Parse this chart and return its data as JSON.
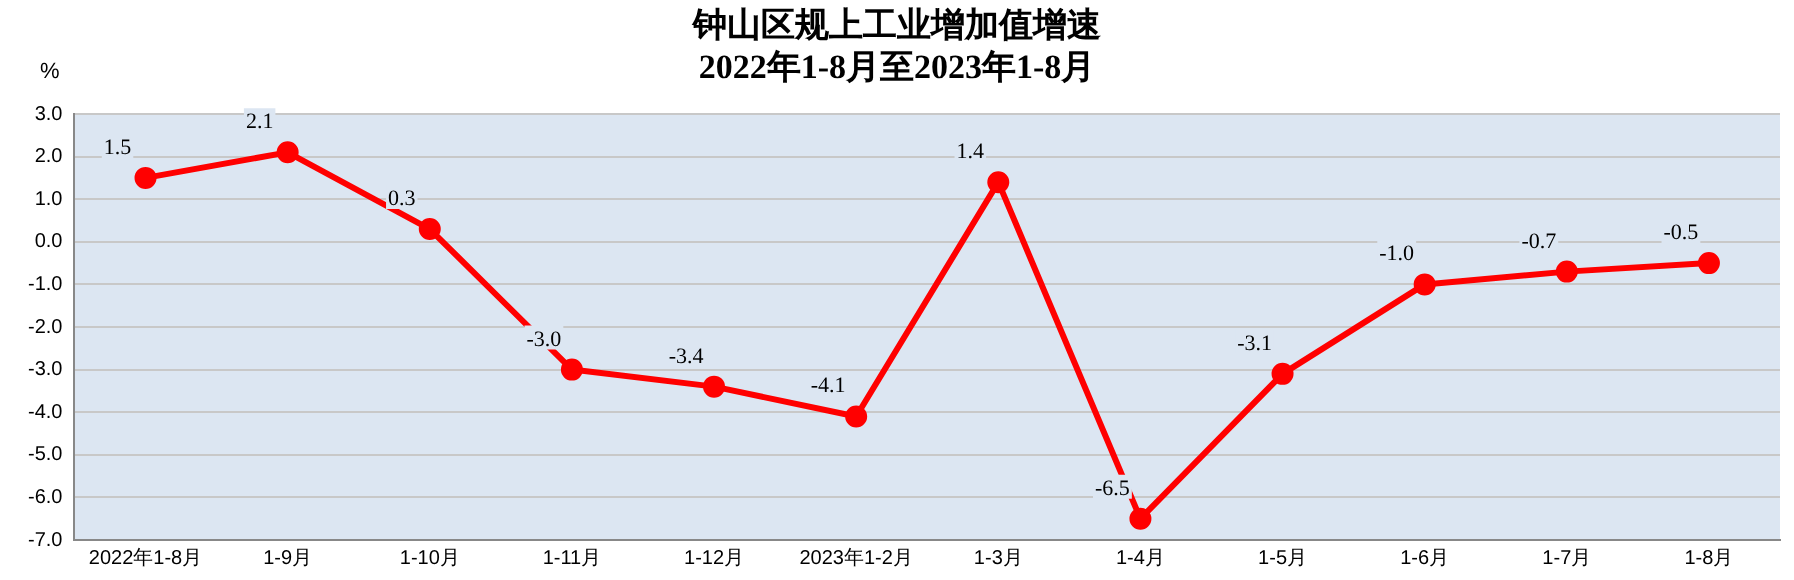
{
  "chart_data": {
    "type": "line",
    "title": "钟山区规上工业增加值增速",
    "subtitle": "2022年1-8月至2023年1-8月",
    "ylabel": "%",
    "categories": [
      "2022年1-8月",
      "1-9月",
      "1-10月",
      "1-11月",
      "1-12月",
      "2023年1-2月",
      "1-3月",
      "1-4月",
      "1-5月",
      "1-6月",
      "1-7月",
      "1-8月"
    ],
    "series": [
      {
        "color": "#ff0000",
        "values": [
          1.5,
          2.1,
          0.3,
          -3.0,
          -3.4,
          -4.1,
          1.4,
          -6.5,
          -3.1,
          -1.0,
          -0.7,
          -0.5
        ],
        "value_labels": [
          "1.5",
          "2.1",
          "0.3",
          "-3.0",
          "-3.4",
          "-4.1",
          "1.4",
          "-6.5",
          "-3.1",
          "-1.0",
          "-0.7",
          "-0.5"
        ]
      }
    ],
    "ylim": [
      -7,
      3
    ],
    "yticks": [
      {
        "value": -7,
        "label": "-7.0"
      },
      {
        "value": -6,
        "label": "-6.0"
      },
      {
        "value": -5,
        "label": "-5.0"
      },
      {
        "value": -4,
        "label": "-4.0"
      },
      {
        "value": -3,
        "label": "-3.0"
      },
      {
        "value": -2,
        "label": "-2.0"
      },
      {
        "value": -1,
        "label": "-1.0"
      },
      {
        "value": 0,
        "label": "0.0"
      },
      {
        "value": 1,
        "label": "1.0"
      },
      {
        "value": 2,
        "label": "2.0"
      },
      {
        "value": 3,
        "label": "3.0"
      }
    ],
    "grid": "y",
    "legend": false,
    "marker": "circle",
    "line_style": "solid"
  }
}
